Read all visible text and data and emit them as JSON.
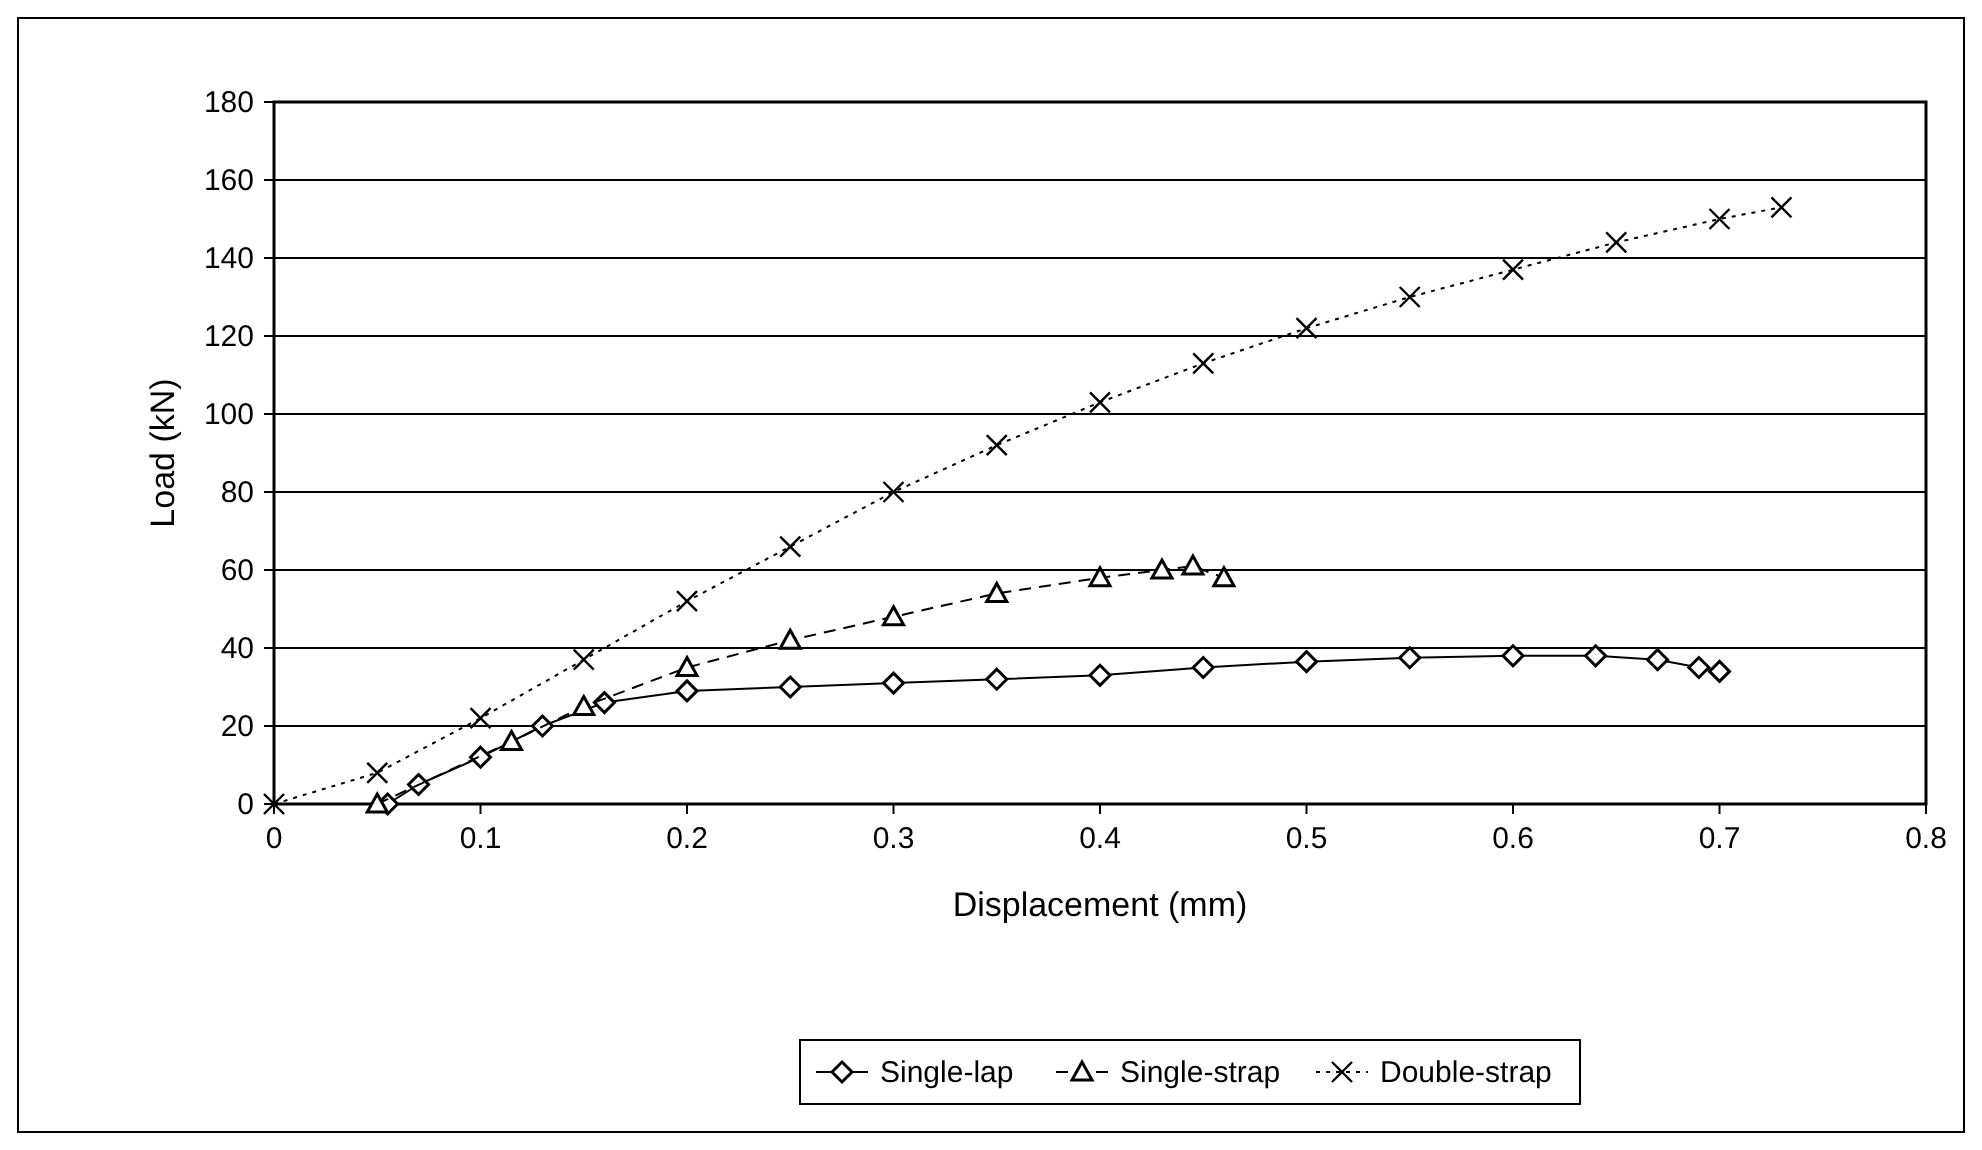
{
  "chart_data": {
    "type": "line",
    "xlabel": "Displacement (mm)",
    "ylabel": "Load (kN)",
    "xlim": [
      0,
      0.8
    ],
    "xticks": [
      0,
      0.1,
      0.2,
      0.3,
      0.4,
      0.5,
      0.6,
      0.7,
      0.8
    ],
    "ylim": [
      0,
      180
    ],
    "yticks": [
      0,
      20,
      40,
      60,
      80,
      100,
      120,
      140,
      160,
      180
    ],
    "grid": "y",
    "legend": "bottom",
    "series": [
      {
        "name": "Single-lap",
        "color": "#000000",
        "marker": "diamond",
        "line_style": "solid",
        "x": [
          0.055,
          0.07,
          0.1,
          0.13,
          0.16,
          0.2,
          0.25,
          0.3,
          0.35,
          0.4,
          0.45,
          0.5,
          0.55,
          0.6,
          0.64,
          0.67,
          0.69,
          0.7
        ],
        "values": [
          0,
          5,
          12,
          20,
          26,
          29,
          30,
          31,
          32,
          33,
          35,
          36.5,
          37.5,
          38,
          38,
          37,
          35,
          34
        ]
      },
      {
        "name": "Single-strap",
        "color": "#000000",
        "marker": "triangle",
        "line_style": "dashed",
        "x": [
          0.05,
          0.115,
          0.15,
          0.2,
          0.25,
          0.3,
          0.35,
          0.4,
          0.43,
          0.445,
          0.46
        ],
        "values": [
          0,
          16,
          25,
          35,
          42,
          48,
          54,
          58,
          60,
          61,
          58
        ]
      },
      {
        "name": "Double-strap",
        "color": "#000000",
        "marker": "cross",
        "line_style": "dotted",
        "x": [
          0,
          0.05,
          0.1,
          0.15,
          0.2,
          0.25,
          0.3,
          0.35,
          0.4,
          0.45,
          0.5,
          0.55,
          0.6,
          0.65,
          0.7,
          0.73
        ],
        "values": [
          0,
          8,
          22,
          37,
          52,
          66,
          80,
          92,
          103,
          113,
          122,
          130,
          137,
          144,
          150,
          153
        ]
      }
    ]
  }
}
